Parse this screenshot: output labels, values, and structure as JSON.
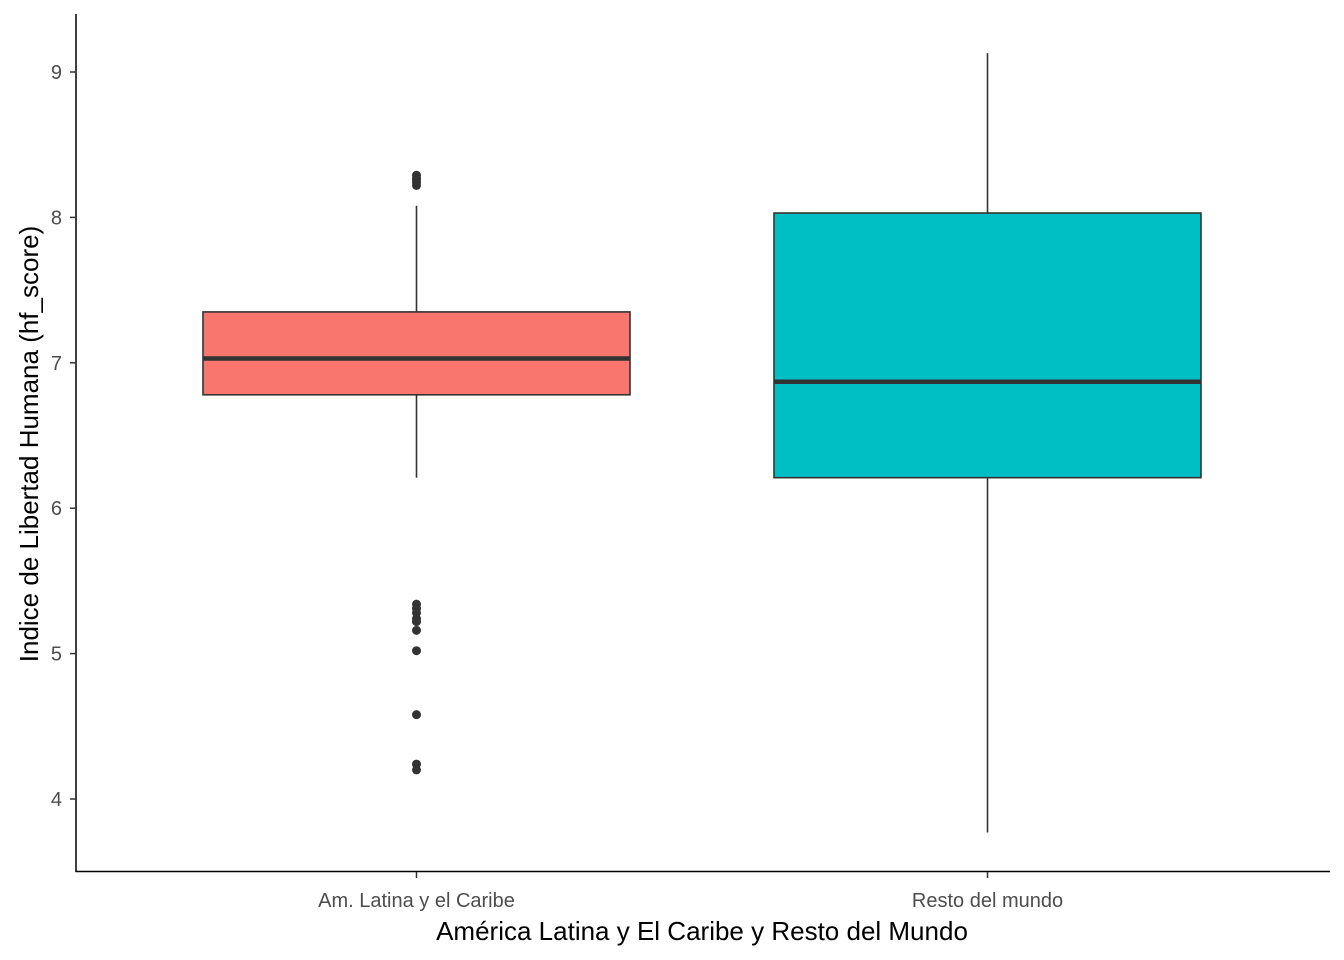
{
  "chart_data": {
    "type": "boxplot",
    "title": "",
    "xlabel": "América Latina y El Caribe y Resto del Mundo",
    "ylabel": "Indice de Libertad Humana (hf_score)",
    "ylim": [
      3.5,
      9.4
    ],
    "yticks": [
      4,
      5,
      6,
      7,
      8,
      9
    ],
    "ytick_labels": [
      "4",
      "5",
      "6",
      "7",
      "8",
      "9"
    ],
    "categories": [
      "Am. Latina y el Caribe",
      "Resto del mundo"
    ],
    "grid": false,
    "legend": "none",
    "boxes": [
      {
        "category": "Am. Latina y el Caribe",
        "whisker_low": 6.21,
        "q1": 6.78,
        "median": 7.03,
        "q3": 7.35,
        "whisker_high": 8.08,
        "outliers": [
          8.22,
          8.24,
          8.26,
          8.27,
          8.29,
          5.34,
          5.31,
          5.28,
          5.24,
          5.22,
          5.16,
          5.02,
          4.58,
          4.24,
          4.2
        ],
        "fill": "#F8766D"
      },
      {
        "category": "Resto del mundo",
        "whisker_low": 3.77,
        "q1": 6.21,
        "median": 6.87,
        "q3": 8.03,
        "whisker_high": 9.13,
        "outliers": [],
        "fill": "#00BFC4"
      }
    ]
  },
  "colors": {
    "axis": "#000000",
    "tick_text": "#4d4d4d",
    "box_border": "#333333"
  }
}
